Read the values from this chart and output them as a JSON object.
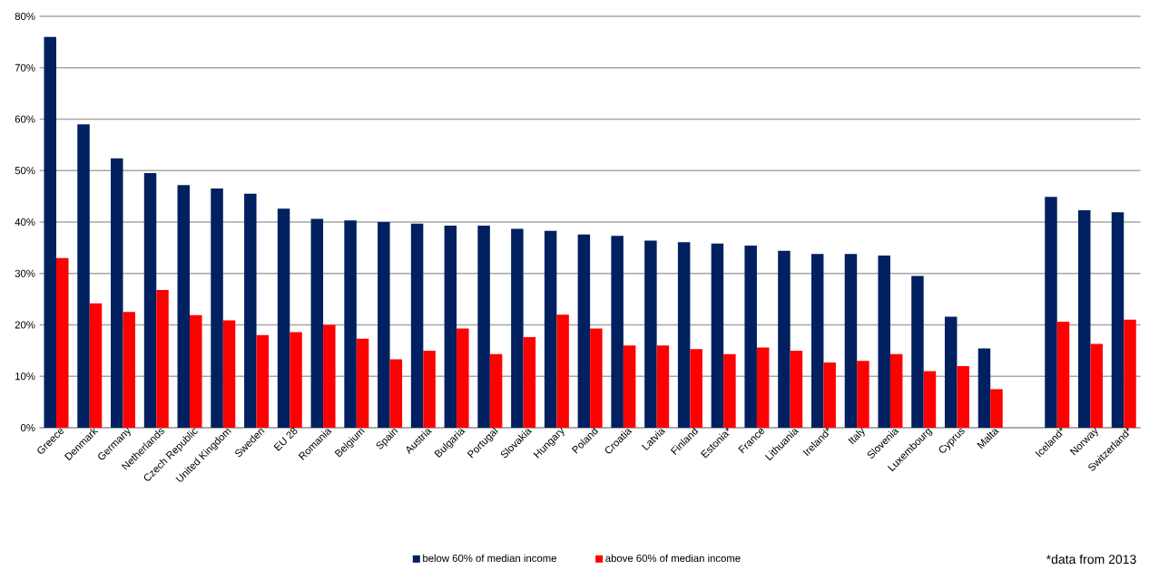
{
  "chart_data": {
    "type": "bar",
    "categories": [
      "Greece",
      "Denmark",
      "Germany",
      "Netherlands",
      "Czech Republic",
      "United Kingdom",
      "Sweden",
      "EU 28",
      "Romania",
      "Belgium",
      "Spain",
      "Austria",
      "Bulgaria",
      "Portugal",
      "Slovakia",
      "Hungary",
      "Poland",
      "Croatia",
      "Latvia",
      "Finland",
      "Estonia*",
      "France",
      "Lithuania",
      "Ireland*",
      "Italy",
      "Slovenia",
      "Luxembourg",
      "Cyprus",
      "Malta",
      null,
      "Iceland*",
      "Norway",
      "Switzerland*"
    ],
    "series": [
      {
        "name": "below 60% of median income",
        "color": "#002060",
        "values": [
          76,
          59,
          52.4,
          49.5,
          47.2,
          46.5,
          45.5,
          42.6,
          40.6,
          40.3,
          40,
          39.7,
          39.3,
          39.3,
          38.7,
          38.3,
          37.6,
          37.3,
          36.4,
          36.1,
          35.8,
          35.4,
          34.4,
          33.8,
          33.8,
          33.5,
          29.5,
          21.6,
          15.4,
          null,
          44.9,
          42.3,
          41.9
        ]
      },
      {
        "name": "above 60% of median income",
        "color": "#ff0000",
        "values": [
          33,
          24.2,
          22.5,
          26.8,
          21.9,
          20.9,
          18,
          18.6,
          20,
          17.3,
          13.3,
          15,
          19.3,
          14.3,
          17.6,
          22,
          19.3,
          16,
          16,
          15.3,
          14.3,
          15.6,
          15,
          12.7,
          13,
          14.3,
          11,
          12,
          7.5,
          null,
          20.6,
          16.3,
          21
        ]
      }
    ],
    "ylim": [
      0,
      80
    ],
    "yticks": [
      {
        "value": 0,
        "label": "0%"
      },
      {
        "value": 10,
        "label": "10%"
      },
      {
        "value": 20,
        "label": "20%"
      },
      {
        "value": 30,
        "label": "30%"
      },
      {
        "value": 40,
        "label": "40%"
      },
      {
        "value": 50,
        "label": "50%"
      },
      {
        "value": 60,
        "label": "60%"
      },
      {
        "value": 70,
        "label": "70%"
      },
      {
        "value": 80,
        "label": "80%"
      }
    ],
    "grid": "y",
    "legend": "bottom",
    "annotations": [
      "*data from 2013"
    ]
  }
}
